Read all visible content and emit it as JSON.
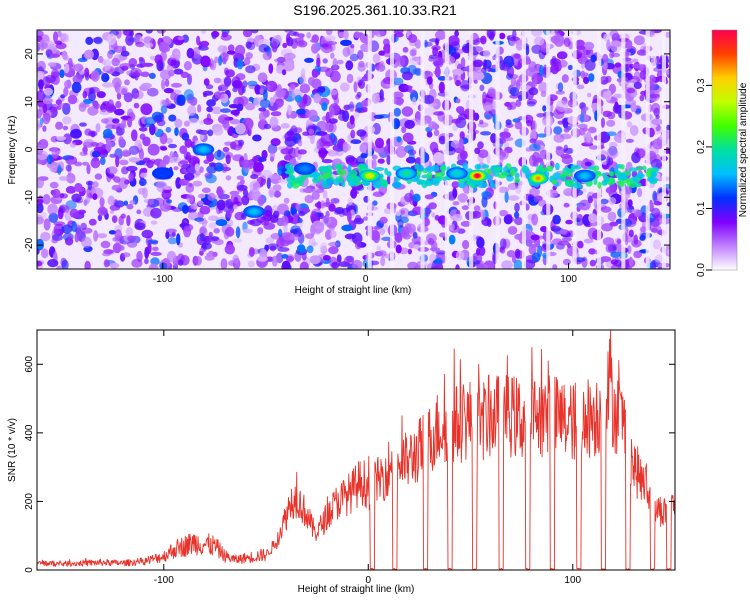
{
  "figure": {
    "title": "S196.2025.361.10.33.R21"
  },
  "chart_data": [
    {
      "type": "heatmap",
      "xlabel": "Height of straight line (km)",
      "ylabel": "Frequency (Hz)",
      "xlim": [
        -162,
        150
      ],
      "ylim": [
        -25,
        25
      ],
      "x_ticks": [
        -100,
        0,
        100
      ],
      "y_ticks": [
        -20,
        -10,
        0,
        10,
        20
      ],
      "colorbar": {
        "label": "Normalized spectral amplitude",
        "range": [
          0,
          0.39
        ],
        "ticks": [
          0.0,
          0.1,
          0.2,
          0.3
        ],
        "colormap": [
          "#ffffff",
          "#c080ff",
          "#8000ff",
          "#0030ff",
          "#00c0ff",
          "#00e0a0",
          "#40ff00",
          "#c0ff00",
          "#ffd000",
          "#ff4000",
          "#ff0050"
        ]
      },
      "grid": false,
      "hotspots": [
        {
          "x": 2,
          "y": -5.5,
          "amplitude": 0.3
        },
        {
          "x": 55,
          "y": -5.5,
          "amplitude": 0.39
        },
        {
          "x": 85,
          "y": -6,
          "amplitude": 0.33
        },
        {
          "x": 20,
          "y": -5,
          "amplitude": 0.2
        },
        {
          "x": 45,
          "y": -5,
          "amplitude": 0.18
        },
        {
          "x": 108,
          "y": -5.5,
          "amplitude": 0.16
        },
        {
          "x": -80,
          "y": 0,
          "amplitude": 0.16
        },
        {
          "x": -55,
          "y": -13,
          "amplitude": 0.16
        },
        {
          "x": -30,
          "y": -4,
          "amplitude": 0.14
        },
        {
          "x": -100,
          "y": -5,
          "amplitude": 0.12
        }
      ]
    },
    {
      "type": "line",
      "xlabel": "Height of straight line (km)",
      "ylabel": "SNR (10 * v/v)",
      "xlim": [
        -162,
        150
      ],
      "ylim": [
        0,
        700
      ],
      "x_ticks": [
        -100,
        0,
        100
      ],
      "y_ticks": [
        0,
        200,
        400,
        600
      ],
      "grid": false,
      "series": [
        {
          "color": "#e8332b",
          "x": [
            -162,
            -150,
            -140,
            -130,
            -120,
            -110,
            -100,
            -95,
            -90,
            -85,
            -80,
            -75,
            -70,
            -65,
            -60,
            -55,
            -50,
            -45,
            -42,
            -40,
            -38,
            -35,
            -32,
            -30,
            -27,
            -25,
            -20,
            -15,
            -10,
            -8,
            -5,
            -3,
            0,
            3,
            5,
            8,
            10,
            15,
            20,
            25,
            30,
            35,
            40,
            45,
            50,
            55,
            60,
            65,
            70,
            75,
            80,
            85,
            90,
            95,
            100,
            105,
            110,
            115,
            118,
            120,
            123,
            125,
            130,
            135,
            140,
            145,
            150
          ],
          "y": [
            20,
            18,
            20,
            22,
            20,
            25,
            40,
            60,
            70,
            80,
            75,
            70,
            40,
            30,
            35,
            40,
            45,
            80,
            130,
            160,
            200,
            210,
            180,
            160,
            120,
            110,
            160,
            200,
            220,
            230,
            250,
            260,
            240,
            250,
            260,
            280,
            300,
            310,
            320,
            350,
            380,
            420,
            420,
            430,
            440,
            430,
            450,
            450,
            450,
            440,
            450,
            450,
            450,
            440,
            430,
            440,
            450,
            460,
            540,
            470,
            450,
            420,
            300,
            250,
            180,
            170,
            190
          ]
        }
      ],
      "dropouts": [
        [
          1,
          3
        ],
        [
          12,
          14
        ],
        [
          27,
          29
        ],
        [
          39,
          41
        ],
        [
          51,
          53
        ],
        [
          64,
          66
        ],
        [
          77,
          79
        ],
        [
          89,
          91
        ],
        [
          102,
          104
        ],
        [
          114,
          116
        ],
        [
          126,
          128
        ],
        [
          138,
          140
        ],
        [
          146,
          148
        ]
      ],
      "peaks": [
        {
          "x": 118.5,
          "y": 700
        },
        {
          "x": 126,
          "y": 660
        },
        {
          "x": 42,
          "y": 645
        },
        {
          "x": 68,
          "y": 625
        },
        {
          "x": 103,
          "y": 628
        },
        {
          "x": 88,
          "y": 610
        },
        {
          "x": 54,
          "y": 600
        },
        {
          "x": -35,
          "y": 285
        }
      ]
    }
  ]
}
